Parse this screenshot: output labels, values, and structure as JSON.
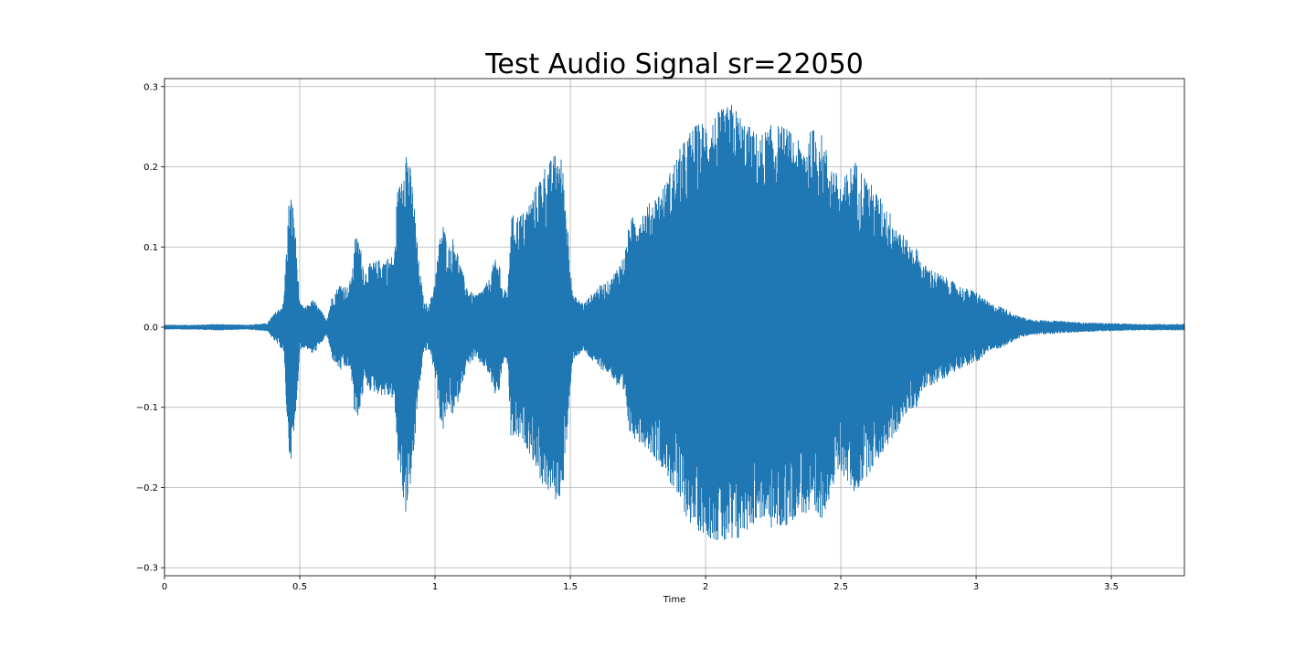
{
  "chart_data": {
    "type": "area",
    "title": "Test Audio Signal sr=22050",
    "xlabel": "Time",
    "ylabel": "",
    "xlim": [
      0,
      3.77
    ],
    "ylim": [
      -0.31,
      0.31
    ],
    "grid": true,
    "x_ticks": [
      {
        "value": 0,
        "label": "0"
      },
      {
        "value": 0.5,
        "label": "0.5"
      },
      {
        "value": 1,
        "label": "1"
      },
      {
        "value": 1.5,
        "label": "1.5"
      },
      {
        "value": 2,
        "label": "2"
      },
      {
        "value": 2.5,
        "label": "2.5"
      },
      {
        "value": 3,
        "label": "3"
      },
      {
        "value": 3.5,
        "label": "3.5"
      }
    ],
    "y_ticks": [
      {
        "value": 0.3,
        "label": "0.3"
      },
      {
        "value": 0.2,
        "label": "0.2"
      },
      {
        "value": 0.1,
        "label": "0.1"
      },
      {
        "value": 0.0,
        "label": "0.0"
      },
      {
        "value": -0.1,
        "label": "−0.1"
      },
      {
        "value": -0.2,
        "label": "−0.2"
      },
      {
        "value": -0.3,
        "label": "−0.3"
      }
    ],
    "series": [
      {
        "color": "#1f77b4",
        "envelope": {
          "x": [
            0,
            0.1,
            0.2,
            0.3,
            0.38,
            0.4,
            0.44,
            0.46,
            0.47,
            0.48,
            0.5,
            0.52,
            0.55,
            0.6,
            0.62,
            0.65,
            0.68,
            0.7,
            0.7,
            0.72,
            0.74,
            0.76,
            0.8,
            0.85,
            0.86,
            0.87,
            0.89,
            0.9,
            0.92,
            0.94,
            0.96,
            0.98,
            1.0,
            1.02,
            1.03,
            1.05,
            1.07,
            1.1,
            1.12,
            1.13,
            1.15,
            1.18,
            1.2,
            1.22,
            1.24,
            1.25,
            1.27,
            1.28,
            1.3,
            1.33,
            1.36,
            1.4,
            1.43,
            1.45,
            1.47,
            1.49,
            1.51,
            1.55,
            1.6,
            1.65,
            1.68,
            1.7,
            1.72,
            1.78,
            1.85,
            1.9,
            1.95,
            2.0,
            2.05,
            2.1,
            2.15,
            2.2,
            2.25,
            2.3,
            2.35,
            2.4,
            2.42,
            2.45,
            2.5,
            2.55,
            2.6,
            2.65,
            2.7,
            2.75,
            2.78,
            2.8,
            2.85,
            2.9,
            2.95,
            3.0,
            3.05,
            3.1,
            3.15,
            3.2,
            3.3,
            3.4,
            3.5,
            3.6,
            3.7,
            3.77
          ],
          "upper": [
            0.003,
            0.003,
            0.004,
            0.003,
            0.005,
            0.015,
            0.03,
            0.16,
            0.165,
            0.14,
            0.03,
            0.025,
            0.035,
            0.01,
            0.04,
            0.055,
            0.05,
            0.08,
            0.115,
            0.11,
            0.07,
            0.08,
            0.085,
            0.09,
            0.17,
            0.18,
            0.235,
            0.22,
            0.17,
            0.08,
            0.03,
            0.03,
            0.06,
            0.12,
            0.13,
            0.1,
            0.115,
            0.07,
            0.05,
            0.045,
            0.04,
            0.05,
            0.06,
            0.085,
            0.08,
            0.045,
            0.05,
            0.14,
            0.14,
            0.145,
            0.165,
            0.2,
            0.21,
            0.22,
            0.21,
            0.13,
            0.04,
            0.03,
            0.05,
            0.06,
            0.08,
            0.09,
            0.135,
            0.15,
            0.18,
            0.22,
            0.25,
            0.26,
            0.27,
            0.28,
            0.255,
            0.24,
            0.255,
            0.25,
            0.23,
            0.25,
            0.25,
            0.22,
            0.18,
            0.21,
            0.185,
            0.16,
            0.135,
            0.105,
            0.1,
            0.08,
            0.07,
            0.06,
            0.05,
            0.045,
            0.03,
            0.025,
            0.015,
            0.01,
            0.008,
            0.006,
            0.005,
            0.004,
            0.004,
            0.004
          ],
          "lower": [
            -0.003,
            -0.003,
            -0.004,
            -0.003,
            -0.005,
            -0.015,
            -0.03,
            -0.16,
            -0.165,
            -0.14,
            -0.03,
            -0.025,
            -0.035,
            -0.01,
            -0.04,
            -0.055,
            -0.05,
            -0.08,
            -0.115,
            -0.11,
            -0.07,
            -0.08,
            -0.085,
            -0.09,
            -0.17,
            -0.18,
            -0.235,
            -0.22,
            -0.17,
            -0.08,
            -0.03,
            -0.03,
            -0.06,
            -0.12,
            -0.13,
            -0.1,
            -0.115,
            -0.07,
            -0.05,
            -0.045,
            -0.04,
            -0.05,
            -0.06,
            -0.085,
            -0.08,
            -0.045,
            -0.05,
            -0.14,
            -0.14,
            -0.145,
            -0.165,
            -0.2,
            -0.21,
            -0.22,
            -0.21,
            -0.13,
            -0.04,
            -0.03,
            -0.05,
            -0.06,
            -0.08,
            -0.09,
            -0.135,
            -0.15,
            -0.18,
            -0.22,
            -0.25,
            -0.26,
            -0.27,
            -0.28,
            -0.255,
            -0.24,
            -0.255,
            -0.25,
            -0.23,
            -0.25,
            -0.25,
            -0.22,
            -0.18,
            -0.21,
            -0.185,
            -0.16,
            -0.135,
            -0.105,
            -0.1,
            -0.08,
            -0.07,
            -0.06,
            -0.05,
            -0.045,
            -0.03,
            -0.025,
            -0.015,
            -0.01,
            -0.008,
            -0.006,
            -0.005,
            -0.004,
            -0.004,
            -0.004
          ]
        }
      }
    ]
  }
}
